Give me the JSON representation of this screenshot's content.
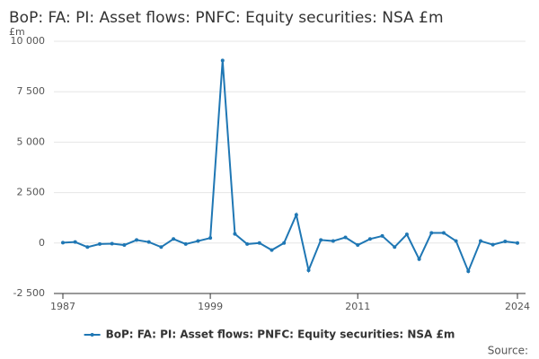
{
  "chart_data": {
    "type": "line",
    "title": "BoP: FA: PI: Asset flows: PNFC: Equity securities: NSA £m",
    "y_label": "£m",
    "source": "Source:",
    "x": [
      1987,
      1988,
      1989,
      1990,
      1991,
      1992,
      1993,
      1994,
      1995,
      1996,
      1997,
      1998,
      1999,
      2000,
      2001,
      2002,
      2003,
      2004,
      2005,
      2006,
      2007,
      2008,
      2009,
      2010,
      2011,
      2012,
      2013,
      2014,
      2015,
      2016,
      2017,
      2018,
      2019,
      2020,
      2021,
      2022,
      2023,
      2024
    ],
    "series": [
      {
        "name": "BoP: FA: PI: Asset flows: PNFC: Equity securities: NSA £m",
        "color": "#1f77b4",
        "values": [
          20,
          50,
          -200,
          -50,
          -30,
          -100,
          150,
          50,
          -200,
          200,
          -50,
          100,
          250,
          9050,
          450,
          -50,
          0,
          -350,
          0,
          1400,
          -1350,
          150,
          100,
          280,
          -100,
          200,
          350,
          -200,
          430,
          -800,
          500,
          500,
          100,
          -1400,
          100,
          -80,
          80,
          0
        ]
      }
    ],
    "xlim": [
      1987,
      2024
    ],
    "xticks": [
      1987,
      1999,
      2011,
      2024
    ],
    "ylim": [
      -2500,
      10000
    ],
    "yticks": [
      {
        "value": -2500,
        "label": "-2 500"
      },
      0,
      {
        "value": 2500,
        "label": "2 500"
      },
      {
        "value": 5000,
        "label": "5 000"
      },
      {
        "value": 7500,
        "label": "7 500"
      },
      {
        "value": 10000,
        "label": "10 000"
      }
    ],
    "grid": true
  }
}
